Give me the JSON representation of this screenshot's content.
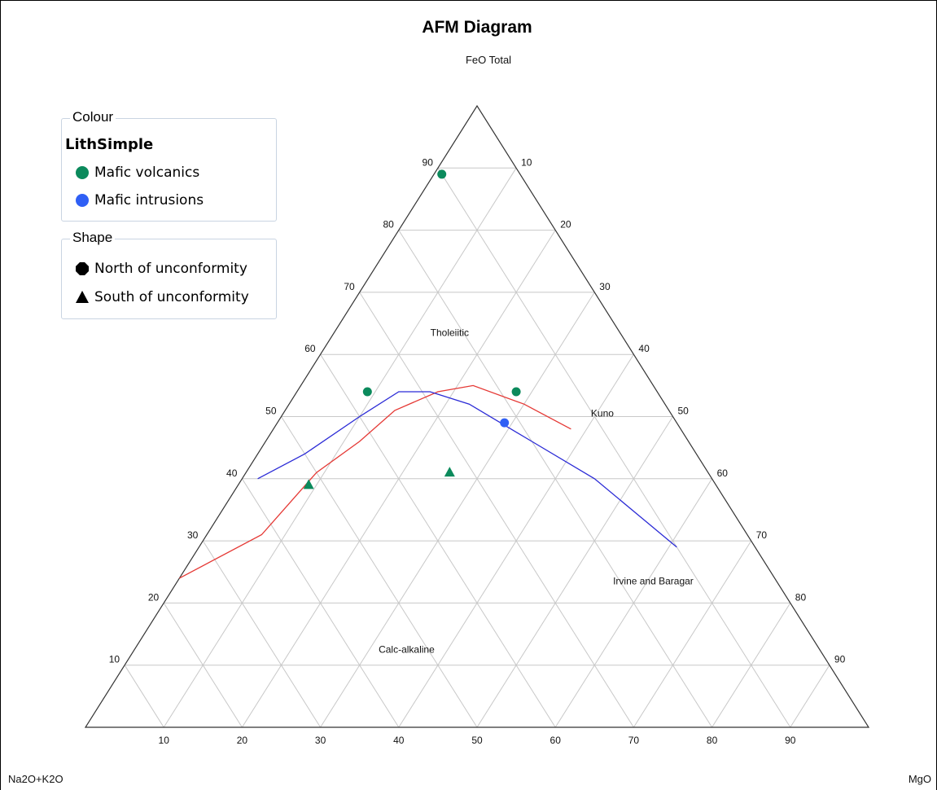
{
  "chart_data": {
    "type": "ternary",
    "title": "AFM Diagram",
    "apex_labels": {
      "top": "FeO Total",
      "left": "Na2O+K2O",
      "right": "MgO"
    },
    "left_edge_ticks": [
      "10",
      "20",
      "30",
      "40",
      "50",
      "60",
      "70",
      "80",
      "90"
    ],
    "right_edge_ticks": [
      "90",
      "80",
      "70",
      "60",
      "50",
      "40",
      "30",
      "20",
      "10"
    ],
    "bottom_ticks": [
      "10",
      "20",
      "30",
      "40",
      "50",
      "60",
      "70",
      "80",
      "90"
    ],
    "grid": true,
    "region_labels": [
      "Tholeiitic",
      "Calc-alkaline"
    ],
    "series": [
      {
        "name": "Kuno",
        "color": "#e53935",
        "points_ALK_FeO_MgO": [
          [
            76,
            24,
            0
          ],
          [
            62,
            31,
            7
          ],
          [
            50,
            41,
            9
          ],
          [
            42,
            46,
            12
          ],
          [
            35,
            51,
            14
          ],
          [
            28,
            54,
            18
          ],
          [
            23,
            55,
            22
          ],
          [
            18,
            52,
            30
          ],
          [
            14,
            48,
            38
          ]
        ]
      },
      {
        "name": "Irvine and Baragar",
        "color": "#2b2bd6",
        "points_ALK_FeO_MgO": [
          [
            58,
            40,
            2
          ],
          [
            50,
            44,
            6
          ],
          [
            40,
            50,
            10
          ],
          [
            33,
            54,
            13
          ],
          [
            29,
            54,
            17
          ],
          [
            25,
            52,
            23
          ],
          [
            20,
            46,
            34
          ],
          [
            15,
            40,
            45
          ],
          [
            10,
            29,
            61
          ]
        ]
      }
    ],
    "points": [
      {
        "group": "Mafic volcanics",
        "shape": "North of unconformity",
        "ALK_FeO_MgO": [
          10,
          89,
          1
        ]
      },
      {
        "group": "Mafic volcanics",
        "shape": "North of unconformity",
        "ALK_FeO_MgO": [
          37,
          54,
          9
        ]
      },
      {
        "group": "Mafic volcanics",
        "shape": "North of unconformity",
        "ALK_FeO_MgO": [
          18,
          54,
          28
        ]
      },
      {
        "group": "Mafic intrusions",
        "shape": "North of unconformity",
        "ALK_FeO_MgO": [
          22,
          49,
          29
        ]
      },
      {
        "group": "Mafic volcanics",
        "shape": "South of unconformity",
        "ALK_FeO_MgO": [
          52,
          39,
          9
        ]
      },
      {
        "group": "Mafic volcanics",
        "shape": "South of unconformity",
        "ALK_FeO_MgO": [
          33,
          41,
          26
        ]
      }
    ]
  },
  "legend": {
    "colour": {
      "title": "Colour",
      "heading": "LithSimple",
      "items": [
        {
          "label": "Mafic volcanics",
          "color": "#0b8a5c"
        },
        {
          "label": "Mafic intrusions",
          "color": "#2f5ff5"
        }
      ]
    },
    "shape": {
      "title": "Shape",
      "items": [
        {
          "label": "North of unconformity",
          "symbol": "circle"
        },
        {
          "label": "South of unconformity",
          "symbol": "triangle"
        }
      ]
    }
  }
}
